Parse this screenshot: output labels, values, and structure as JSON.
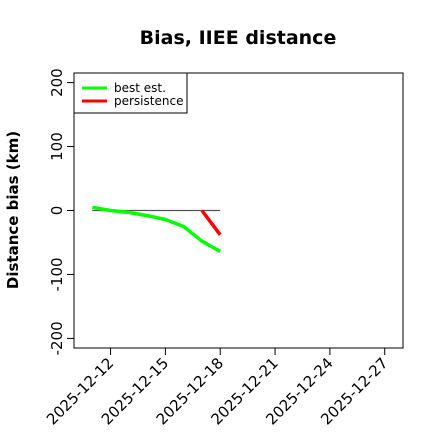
{
  "chart_data": {
    "type": "line",
    "title": "Bias, IIEE distance",
    "xlabel": "",
    "ylabel": "Distance bias (km)",
    "x_range": [
      "2025-12-10",
      "2025-12-28"
    ],
    "ylim": [
      -215,
      215
    ],
    "x_ticks": [
      "2025-12-12",
      "2025-12-15",
      "2025-12-18",
      "2025-12-21",
      "2025-12-24",
      "2025-12-27"
    ],
    "y_ticks": [
      -200,
      -100,
      0,
      100,
      200
    ],
    "grid": false,
    "legend_position": "top-left",
    "reference_line": {
      "y": 0,
      "x_start": "2025-12-11",
      "x_end": "2025-12-18",
      "color": "#555555"
    },
    "series": [
      {
        "name": "best est.",
        "color": "#00ff00",
        "x": [
          "2025-12-11",
          "2025-12-12",
          "2025-12-13",
          "2025-12-14",
          "2025-12-15",
          "2025-12-16",
          "2025-12-17",
          "2025-12-18"
        ],
        "y": [
          5,
          0,
          -3,
          -8,
          -14,
          -25,
          -48,
          -64
        ]
      },
      {
        "name": "persistence",
        "color": "#ff0000",
        "x": [
          "2025-12-17",
          "2025-12-18"
        ],
        "y": [
          0,
          -38
        ]
      }
    ]
  }
}
